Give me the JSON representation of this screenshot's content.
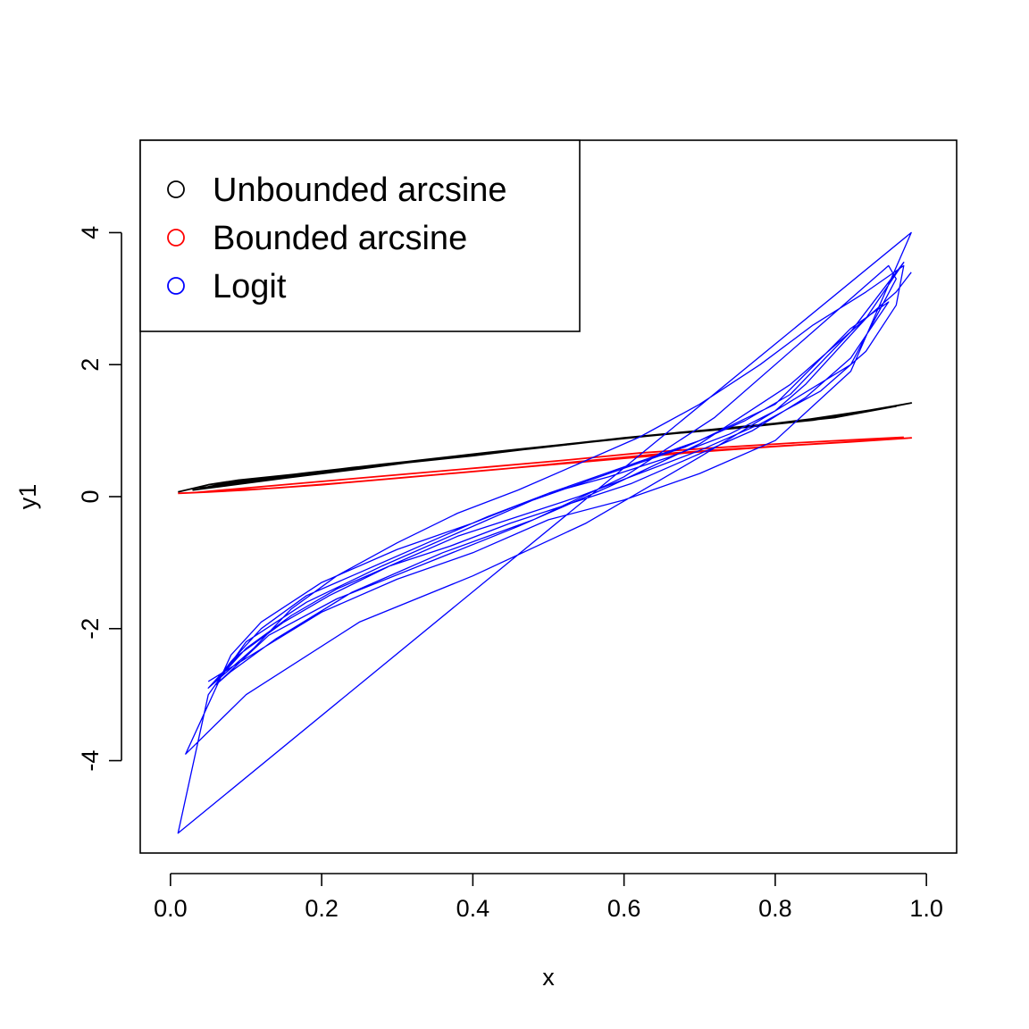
{
  "chart_data": {
    "type": "line",
    "title": "",
    "xlabel": "x",
    "ylabel": "y1",
    "xlim": [
      -0.04,
      1.04
    ],
    "ylim": [
      -5.4,
      5.4
    ],
    "xticks": [
      "0.0",
      "0.2",
      "0.4",
      "0.6",
      "0.8",
      "1.0"
    ],
    "yticks": [
      "-4",
      "-2",
      "0",
      "2",
      "4"
    ],
    "grid": false,
    "legend": {
      "placement": "top-left",
      "entries": [
        {
          "label": "Unbounded arcsine",
          "color": "#000000"
        },
        {
          "label": "Bounded arcsine",
          "color": "#ff0000"
        },
        {
          "label": "Logit",
          "color": "#0000ff"
        }
      ]
    },
    "series": [
      {
        "color": "#000000",
        "x": [
          0.01,
          0.05,
          0.09,
          0.14,
          0.2,
          0.3,
          0.4,
          0.5,
          0.6,
          0.7,
          0.8,
          0.9,
          0.98,
          0.94,
          0.85,
          0.75,
          0.65,
          0.55,
          0.45,
          0.35,
          0.25,
          0.15,
          0.07,
          0.03,
          0.08,
          0.18,
          0.28,
          0.38,
          0.48,
          0.58,
          0.68,
          0.78,
          0.88,
          0.96,
          0.92,
          0.82,
          0.72,
          0.62,
          0.52,
          0.42,
          0.32,
          0.22,
          0.12,
          0.04,
          0.1,
          0.24,
          0.36,
          0.46,
          0.56,
          0.66,
          0.76,
          0.86,
          0.97
        ],
        "y": [
          0.07,
          0.18,
          0.25,
          0.31,
          0.38,
          0.5,
          0.62,
          0.76,
          0.89,
          1.0,
          1.11,
          1.25,
          1.42,
          1.33,
          1.16,
          1.04,
          0.94,
          0.82,
          0.7,
          0.57,
          0.42,
          0.28,
          0.16,
          0.1,
          0.22,
          0.36,
          0.49,
          0.61,
          0.73,
          0.86,
          0.98,
          1.08,
          1.2,
          1.37,
          1.3,
          1.13,
          1.01,
          0.91,
          0.79,
          0.67,
          0.54,
          0.4,
          0.26,
          0.13,
          0.24,
          0.44,
          0.58,
          0.71,
          0.84,
          0.95,
          1.06,
          1.18,
          1.4
        ]
      },
      {
        "color": "#ff0000",
        "x": [
          0.01,
          0.05,
          0.1,
          0.2,
          0.3,
          0.4,
          0.5,
          0.6,
          0.7,
          0.8,
          0.9,
          0.98,
          0.94,
          0.84,
          0.74,
          0.64,
          0.54,
          0.44,
          0.34,
          0.24,
          0.14,
          0.06,
          0.03,
          0.12,
          0.22,
          0.32,
          0.42,
          0.52,
          0.62,
          0.72,
          0.82,
          0.92,
          0.97
        ],
        "y": [
          0.05,
          0.07,
          0.1,
          0.18,
          0.28,
          0.38,
          0.48,
          0.58,
          0.68,
          0.76,
          0.83,
          0.89,
          0.86,
          0.79,
          0.72,
          0.64,
          0.53,
          0.42,
          0.32,
          0.22,
          0.13,
          0.08,
          0.06,
          0.15,
          0.25,
          0.35,
          0.45,
          0.55,
          0.66,
          0.74,
          0.81,
          0.87,
          0.9
        ]
      },
      {
        "color": "#0000ff",
        "x": [
          0.98,
          0.96,
          0.92,
          0.88,
          0.84,
          0.8,
          0.74,
          0.66,
          0.58,
          0.5,
          0.42,
          0.34,
          0.26,
          0.18,
          0.12,
          0.08,
          0.06,
          0.1,
          0.16,
          0.22,
          0.3,
          0.38,
          0.46,
          0.54,
          0.62,
          0.7,
          0.78,
          0.86,
          0.92,
          0.96,
          0.97,
          0.92,
          0.85,
          0.78,
          0.7,
          0.62,
          0.54,
          0.46,
          0.38,
          0.3,
          0.22,
          0.16,
          0.11,
          0.07,
          0.05,
          0.09,
          0.15,
          0.21,
          0.29,
          0.37,
          0.45,
          0.53,
          0.61,
          0.69,
          0.77,
          0.84,
          0.9,
          0.95,
          0.9,
          0.8,
          0.7,
          0.6,
          0.5,
          0.4,
          0.3,
          0.2,
          0.12,
          0.08,
          0.02,
          0.1,
          0.25,
          0.4,
          0.55,
          0.7,
          0.8,
          0.9,
          0.96,
          0.95,
          0.86,
          0.72,
          0.6,
          0.48,
          0.36,
          0.24,
          0.14,
          0.08,
          0.06,
          0.13,
          0.22,
          0.34,
          0.46,
          0.58,
          0.7,
          0.82,
          0.92,
          0.97,
          0.9,
          0.82,
          0.76,
          0.68,
          0.58,
          0.48,
          0.38,
          0.28,
          0.18,
          0.1,
          0.05,
          0.01,
          0.98,
          0.9,
          0.8,
          0.7,
          0.6,
          0.5,
          0.4,
          0.3,
          0.2,
          0.1,
          0.05
        ],
        "y": [
          3.4,
          3.1,
          2.7,
          2.2,
          1.7,
          1.3,
          0.95,
          0.6,
          0.3,
          0.05,
          -0.3,
          -0.7,
          -1.1,
          -1.5,
          -2.0,
          -2.5,
          -2.8,
          -2.3,
          -1.8,
          -1.4,
          -1.0,
          -0.6,
          -0.3,
          0.0,
          0.35,
          0.7,
          1.1,
          1.6,
          2.2,
          2.9,
          3.5,
          3.1,
          2.6,
          2.0,
          1.4,
          0.9,
          0.5,
          0.1,
          -0.25,
          -0.7,
          -1.2,
          -1.7,
          -2.3,
          -2.7,
          -2.9,
          -2.4,
          -1.9,
          -1.5,
          -1.05,
          -0.75,
          -0.4,
          -0.1,
          0.2,
          0.6,
          1.0,
          1.5,
          2.1,
          2.95,
          2.55,
          1.4,
          0.85,
          0.45,
          0.05,
          -0.4,
          -0.8,
          -1.3,
          -1.9,
          -2.4,
          -3.9,
          -3.0,
          -1.9,
          -1.2,
          -0.4,
          0.6,
          1.3,
          2.0,
          3.3,
          3.5,
          2.6,
          1.2,
          0.3,
          -0.35,
          -0.85,
          -1.45,
          -2.15,
          -2.65,
          -2.85,
          -2.1,
          -1.55,
          -1.0,
          -0.45,
          0.15,
          0.8,
          1.7,
          2.7,
          3.55,
          2.5,
          1.55,
          1.15,
          0.75,
          0.35,
          -0.05,
          -0.55,
          -1.05,
          -1.6,
          -2.2,
          -3.0,
          -5.1,
          4.0,
          1.9,
          0.85,
          0.35,
          -0.05,
          -0.35,
          -0.85,
          -1.25,
          -1.75,
          -2.45,
          -2.8
        ]
      }
    ]
  }
}
